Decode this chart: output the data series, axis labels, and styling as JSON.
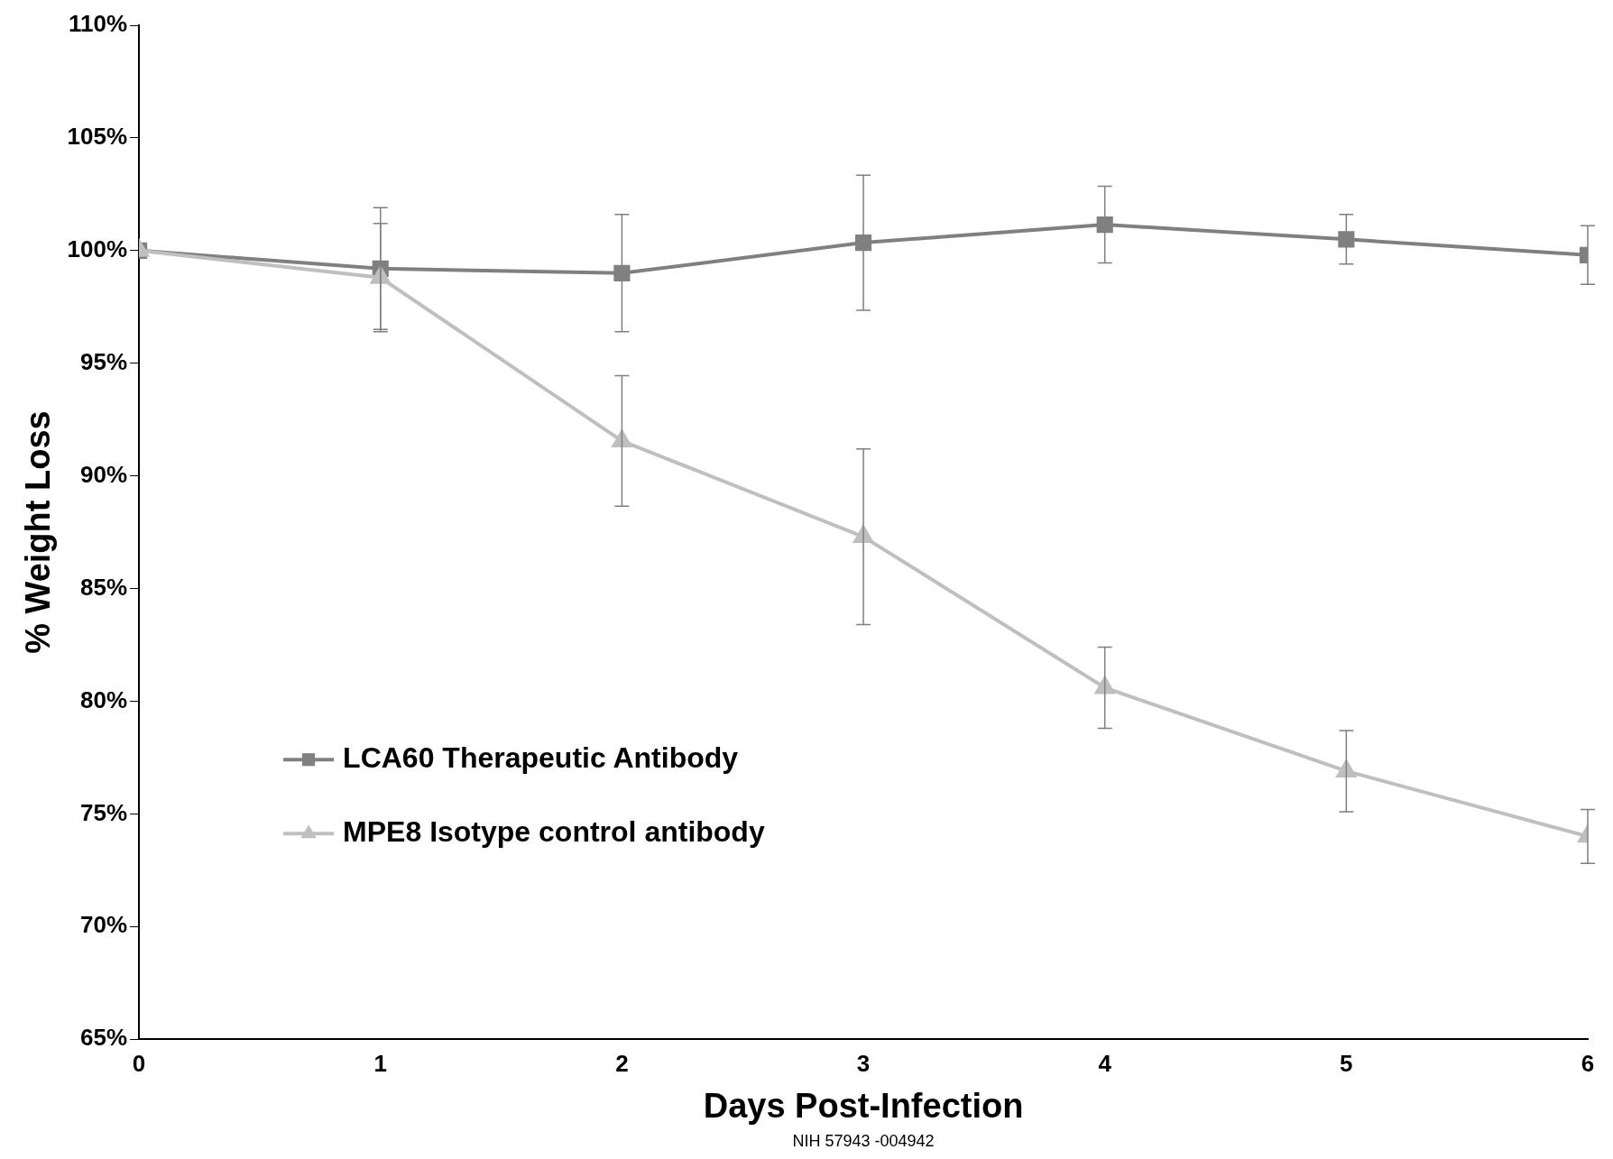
{
  "chart_data": {
    "type": "line",
    "xlabel": "Days Post-Infection",
    "ylabel": "% Weight Loss",
    "x": [
      0,
      1,
      2,
      3,
      4,
      5,
      6
    ],
    "xlim": [
      0,
      6
    ],
    "xticks": [
      0,
      1,
      2,
      3,
      4,
      5,
      6
    ],
    "ylim": [
      65,
      110
    ],
    "yticks": [
      {
        "value": 65,
        "label": "65%"
      },
      {
        "value": 70,
        "label": "70%"
      },
      {
        "value": 75,
        "label": "75%"
      },
      {
        "value": 80,
        "label": "80%"
      },
      {
        "value": 85,
        "label": "85%"
      },
      {
        "value": 90,
        "label": "90%"
      },
      {
        "value": 95,
        "label": "95%"
      },
      {
        "value": 100,
        "label": "100%"
      },
      {
        "value": 105,
        "label": "105%"
      },
      {
        "value": 110,
        "label": "110%"
      }
    ],
    "grid": false,
    "legend": "bottom left",
    "line_style": "solid",
    "series": [
      {
        "name": "LCA60 Therapeutic Antibody",
        "color": "#808080",
        "marker": "square",
        "values": [
          100,
          99.2,
          99.0,
          100.35,
          101.15,
          100.5,
          99.8
        ],
        "errors": [
          null,
          2.7,
          2.6,
          3.0,
          1.7,
          1.1,
          1.3
        ]
      },
      {
        "name": "MPE8 Isotype control antibody",
        "color": "#bfbfbf",
        "marker": "triangle",
        "values": [
          100,
          98.8,
          91.55,
          87.3,
          80.6,
          76.9,
          74.0
        ],
        "errors": [
          null,
          2.4,
          2.9,
          3.9,
          1.8,
          1.8,
          1.2
        ]
      }
    ],
    "annotations": [
      "NIH 57943 -004942"
    ]
  }
}
